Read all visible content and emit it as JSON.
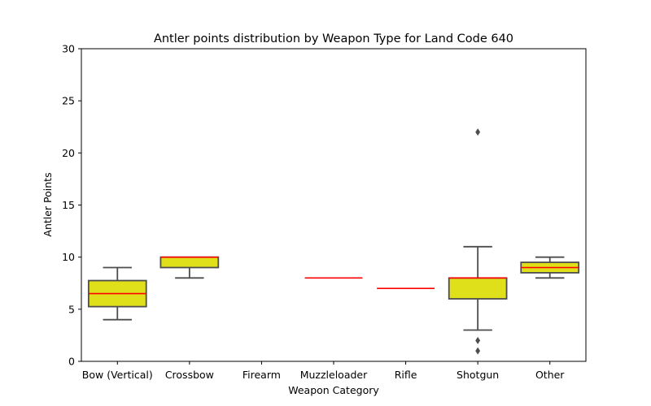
{
  "chart_data": {
    "type": "box",
    "title": "Antler points distribution by Weapon Type for Land Code 640",
    "xlabel": "Weapon Category",
    "ylabel": "Antler Points",
    "ylim": [
      0,
      30
    ],
    "yticks": [
      0,
      5,
      10,
      15,
      20,
      25,
      30
    ],
    "grid": false,
    "categories": [
      "Bow (Vertical)",
      "Crossbow",
      "Firearm",
      "Muzzleloader",
      "Rifle",
      "Shotgun",
      "Other"
    ],
    "boxes": [
      {
        "category": "Bow (Vertical)",
        "whisker_low": 4,
        "q1": 5.25,
        "median": 6.5,
        "q3": 7.75,
        "whisker_high": 9,
        "outliers": []
      },
      {
        "category": "Crossbow",
        "whisker_low": 8,
        "q1": 9,
        "median": 10,
        "q3": 10,
        "whisker_high": 10,
        "outliers": []
      },
      {
        "category": "Firearm",
        "whisker_low": null,
        "q1": null,
        "median": null,
        "q3": null,
        "whisker_high": null,
        "outliers": []
      },
      {
        "category": "Muzzleloader",
        "whisker_low": 8,
        "q1": 8,
        "median": 8,
        "q3": 8,
        "whisker_high": 8,
        "outliers": []
      },
      {
        "category": "Rifle",
        "whisker_low": 7,
        "q1": 7,
        "median": 7,
        "q3": 7,
        "whisker_high": 7,
        "outliers": []
      },
      {
        "category": "Shotgun",
        "whisker_low": 3,
        "q1": 6,
        "median": 8,
        "q3": 8,
        "whisker_high": 11,
        "outliers": [
          2,
          1,
          22
        ]
      },
      {
        "category": "Other",
        "whisker_low": 8,
        "q1": 8.5,
        "median": 9,
        "q3": 9.5,
        "whisker_high": 10,
        "outliers": []
      }
    ],
    "colors": {
      "box_fill": "#e0e01a",
      "box_edge": "#4d4d4d",
      "median": "#ff0000",
      "whisker": "#4d4d4d",
      "outlier": "#4d4d4d",
      "axis": "#000000"
    }
  }
}
